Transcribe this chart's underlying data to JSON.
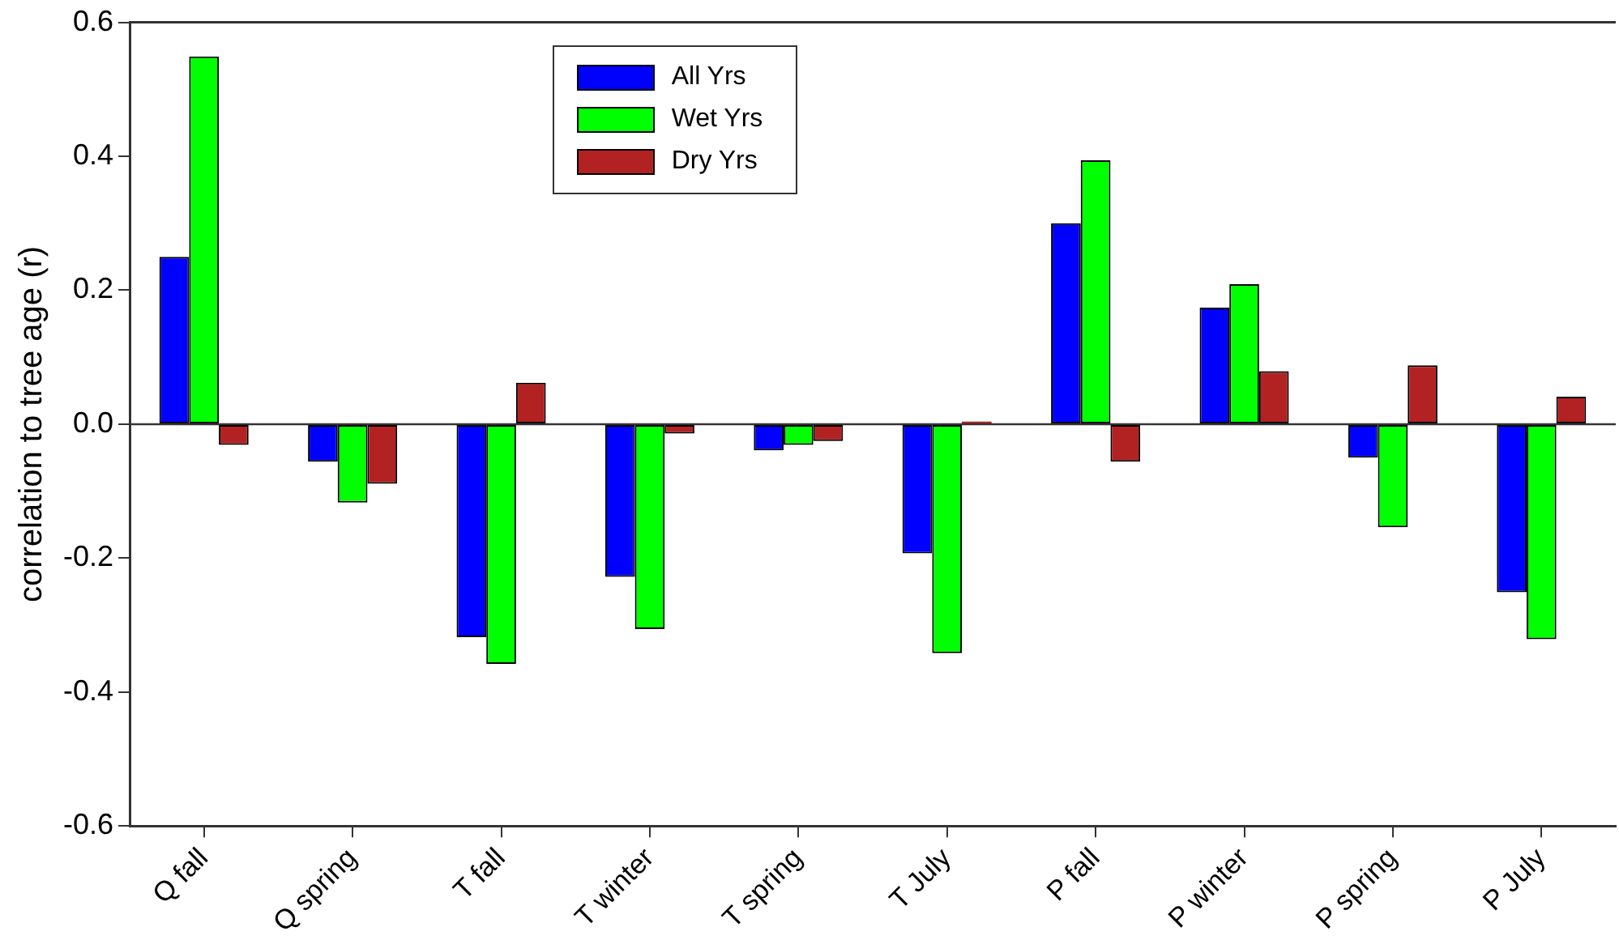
{
  "chart_data": {
    "type": "bar",
    "ylabel": "correlation to tree age (r)",
    "categories": [
      "Q fall",
      "Q spring",
      "T fall",
      "T winter",
      "T spring",
      "T July",
      "P fall",
      "P winter",
      "P spring",
      "P July"
    ],
    "series": [
      {
        "name": "All Yrs",
        "color": "#0000ff",
        "values": [
          0.25,
          -0.056,
          -0.318,
          -0.228,
          -0.039,
          -0.193,
          0.3,
          0.174,
          -0.05,
          -0.251
        ]
      },
      {
        "name": "Wet Yrs",
        "color": "#00ff00",
        "values": [
          0.549,
          -0.117,
          -0.358,
          -0.306,
          -0.031,
          -0.342,
          0.394,
          0.209,
          -0.154,
          -0.321
        ]
      },
      {
        "name": "Dry Yrs",
        "color": "#b22222",
        "values": [
          -0.031,
          -0.089,
          0.062,
          -0.014,
          -0.025,
          0.004,
          -0.056,
          0.079,
          0.088,
          0.041
        ]
      }
    ],
    "ylim": [
      -0.6,
      0.6
    ],
    "yticks": [
      -0.6,
      -0.4,
      -0.2,
      {
        "value": 0,
        "label": "0.0"
      },
      0.2,
      0.4,
      0.6
    ],
    "ref_lines": [
      {
        "axis": "y",
        "value": 0
      }
    ],
    "grid": false,
    "legend": "top"
  }
}
